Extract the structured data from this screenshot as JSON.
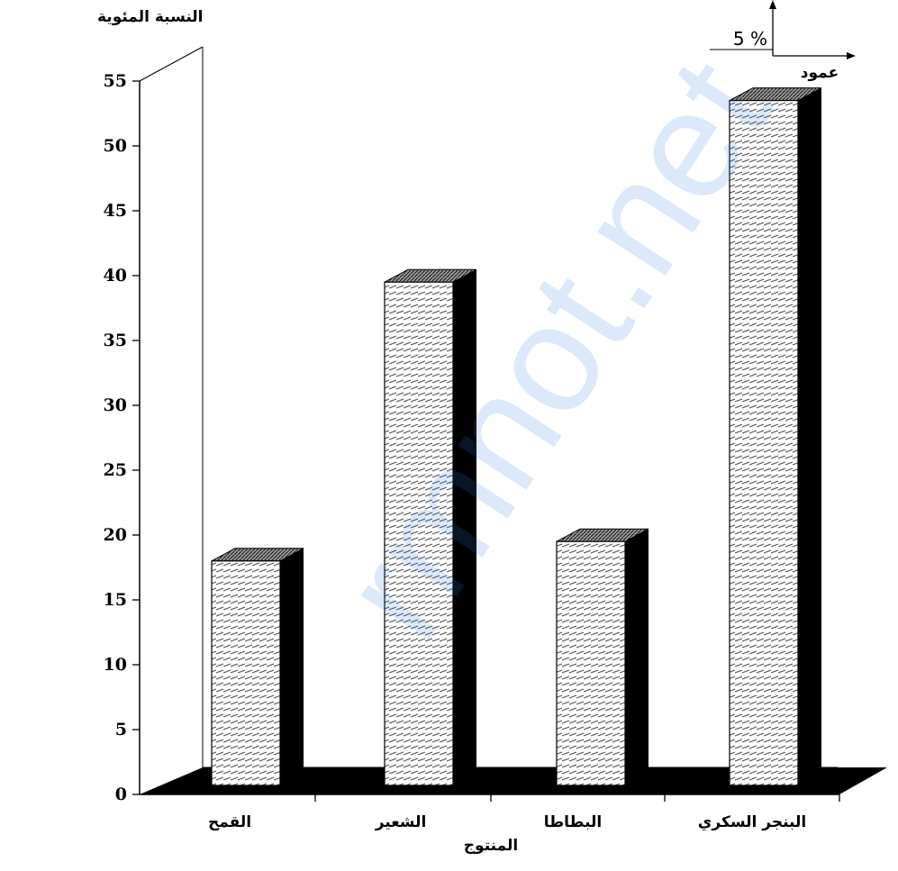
{
  "chart_data": {
    "type": "bar",
    "ylabel": "النسبة المئوية",
    "xlabel": "المنتوج",
    "categories": [
      "القمح",
      "الشعير",
      "البطاطا",
      "البنجر السكري"
    ],
    "values": [
      18,
      39.5,
      19.5,
      53.5
    ],
    "ylim": [
      0,
      55
    ],
    "yticks": [
      0,
      5,
      10,
      15,
      20,
      25,
      30,
      35,
      40,
      45,
      50,
      55
    ],
    "ytick_labels": [
      "0",
      "5",
      "10",
      "15",
      "20",
      "25",
      "30",
      "35",
      "40",
      "45",
      "50",
      "55"
    ],
    "style": "3d",
    "grid": false,
    "scale_note": {
      "value": "5 %",
      "unit_label": "عمود"
    }
  },
  "watermark": "rmnot.net",
  "colors": {
    "bar_face": "#ffffff",
    "bar_hatch": "#555555",
    "bar_side": "#000000",
    "floor": "#000000",
    "watermark": "#2f7fe6"
  }
}
